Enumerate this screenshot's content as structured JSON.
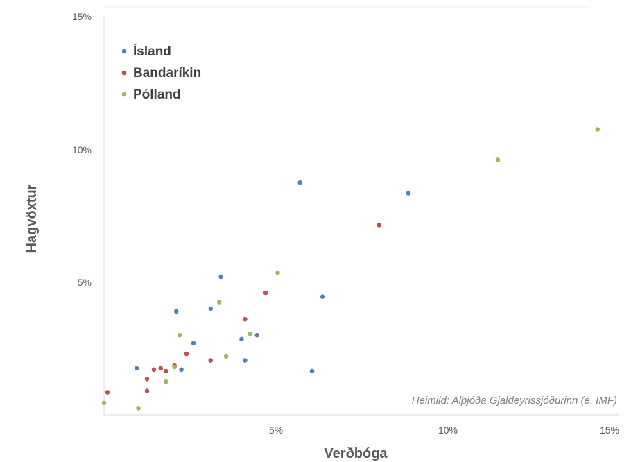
{
  "chart_data": {
    "type": "scatter",
    "xlabel": "Verðbóga",
    "ylabel": "Hagvöxtur",
    "xlim": [
      0,
      15
    ],
    "ylim": [
      0,
      15
    ],
    "x_ticks": [
      "5%",
      "10%",
      "15%"
    ],
    "y_ticks": [
      "5%",
      "10%",
      "15%"
    ],
    "grid": false,
    "legend_position": "top-left",
    "source": "Heimild: Alþjóða Gjaldeyrissjóðurinn (e. IMF)",
    "series": [
      {
        "name": "Ísland",
        "color": "#4f81bd",
        "points": [
          [
            0.95,
            1.75
          ],
          [
            2.1,
            3.9
          ],
          [
            2.25,
            1.7
          ],
          [
            2.6,
            2.7
          ],
          [
            3.1,
            4.0
          ],
          [
            3.4,
            5.2
          ],
          [
            4.0,
            2.85
          ],
          [
            4.1,
            2.05
          ],
          [
            4.45,
            3.0
          ],
          [
            5.7,
            8.75
          ],
          [
            6.05,
            1.65
          ],
          [
            6.35,
            4.45
          ],
          [
            8.85,
            8.35
          ]
        ]
      },
      {
        "name": "Bandaríkin",
        "color": "#c0504d",
        "points": [
          [
            0.1,
            0.85
          ],
          [
            1.25,
            1.35
          ],
          [
            1.25,
            0.9
          ],
          [
            1.45,
            1.7
          ],
          [
            1.65,
            1.75
          ],
          [
            1.8,
            1.65
          ],
          [
            2.05,
            1.85
          ],
          [
            2.4,
            2.3
          ],
          [
            3.1,
            2.05
          ],
          [
            4.1,
            3.6
          ],
          [
            4.7,
            4.6
          ],
          [
            8.0,
            7.15
          ]
        ]
      },
      {
        "name": "Pólland",
        "color": "#9bbb59",
        "points": [
          [
            0.0,
            0.45
          ],
          [
            1.0,
            0.25
          ],
          [
            1.8,
            1.25
          ],
          [
            2.05,
            1.8
          ],
          [
            2.2,
            3.0
          ],
          [
            3.35,
            4.25
          ],
          [
            3.55,
            2.2
          ],
          [
            4.25,
            3.05
          ],
          [
            5.05,
            5.35
          ],
          [
            11.45,
            9.6
          ],
          [
            14.35,
            10.75
          ]
        ]
      }
    ]
  },
  "colors": {
    "axis": "#d9d9d9",
    "text": "#595959"
  }
}
